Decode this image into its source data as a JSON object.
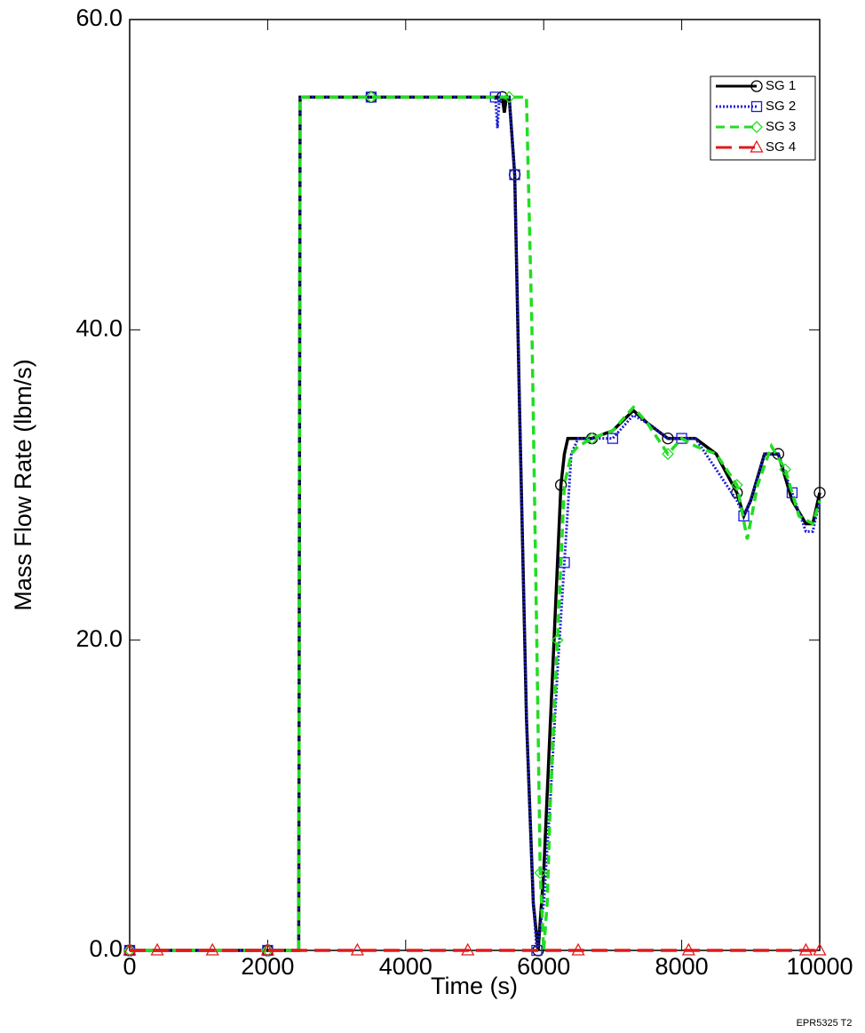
{
  "chart_data": {
    "type": "line",
    "x_label": "Time (s)",
    "y_label": "Mass Flow Rate (lbm/s)",
    "annotation": "EPR5325 T2",
    "xlim": [
      0,
      10000
    ],
    "ylim": [
      0,
      60
    ],
    "xticks": [
      0,
      2000,
      4000,
      6000,
      8000,
      10000
    ],
    "yticks": [
      {
        "value": 0,
        "label": "0.0"
      },
      {
        "value": 20,
        "label": "20.0"
      },
      {
        "value": 40,
        "label": "40.0"
      },
      {
        "value": 60,
        "label": "60.0"
      }
    ],
    "legend": "upper right",
    "grid": false,
    "series": [
      {
        "name": "SG 1",
        "color": "#000000",
        "style": "solid",
        "marker": "circle",
        "x": [
          0,
          500,
          1000,
          1500,
          2000,
          2450,
          2470,
          3000,
          3500,
          4000,
          4500,
          5000,
          5400,
          5430,
          5460,
          5500,
          5580,
          5650,
          5750,
          5850,
          5920,
          6000,
          6100,
          6200,
          6250,
          6300,
          6350,
          6500,
          6700,
          7000,
          7300,
          7500,
          7800,
          8000,
          8200,
          8500,
          8800,
          8900,
          9000,
          9200,
          9400,
          9600,
          9800,
          9900,
          10000
        ],
        "values": [
          0,
          0,
          0,
          0,
          0,
          0,
          55,
          55,
          55,
          55,
          55,
          55,
          55,
          54,
          55,
          55,
          50,
          35,
          15,
          3,
          0,
          5,
          15,
          25,
          30,
          32,
          33,
          33,
          33,
          33.5,
          34.8,
          34,
          33,
          33,
          33,
          32,
          29.5,
          28,
          29,
          32,
          32,
          29,
          27.5,
          27.5,
          29.5
        ]
      },
      {
        "name": "SG 2",
        "color": "#1a1ad8",
        "style": "dotted",
        "marker": "square",
        "x": [
          0,
          500,
          1000,
          1500,
          2000,
          2450,
          2470,
          3000,
          3500,
          4000,
          4500,
          5000,
          5300,
          5330,
          5360,
          5500,
          5580,
          5650,
          5750,
          5850,
          5900,
          6000,
          6100,
          6200,
          6300,
          6400,
          6500,
          6700,
          7000,
          7300,
          7500,
          7800,
          8000,
          8200,
          8500,
          8800,
          8900,
          9000,
          9200,
          9400,
          9600,
          9800,
          9900,
          10000
        ],
        "values": [
          0,
          0,
          0,
          0,
          0,
          0,
          55,
          55,
          55,
          55,
          55,
          55,
          55,
          53,
          55,
          55,
          50,
          35,
          15,
          3,
          0,
          3,
          10,
          18,
          25,
          32,
          33,
          33,
          33,
          34.5,
          34,
          33,
          33,
          33,
          31,
          29,
          28,
          29,
          32,
          32,
          29.5,
          27,
          27,
          29
        ]
      },
      {
        "name": "SG 3",
        "color": "#22dd22",
        "style": "dashed",
        "marker": "diamond",
        "x": [
          0,
          500,
          1000,
          1500,
          2000,
          2450,
          2470,
          3000,
          3500,
          4000,
          4500,
          5000,
          5500,
          5750,
          5830,
          5900,
          5950,
          6000,
          6050,
          6100,
          6200,
          6300,
          6400,
          6500,
          6700,
          7000,
          7300,
          7500,
          7800,
          8000,
          8200,
          8500,
          8800,
          8950,
          9100,
          9300,
          9500,
          9700,
          9900,
          10000
        ],
        "values": [
          0,
          0,
          0,
          0,
          0,
          0,
          55,
          55,
          55,
          55,
          55,
          55,
          55,
          55,
          40,
          20,
          5,
          0,
          3,
          10,
          20,
          30,
          32,
          32.5,
          33,
          33.5,
          35,
          34,
          32,
          33,
          32.5,
          32,
          30,
          26.5,
          30,
          32.5,
          31,
          28,
          27.5,
          29
        ]
      },
      {
        "name": "SG 4",
        "color": "#e01a1a",
        "style": "longdash",
        "marker": "triangle",
        "x": [
          0,
          400,
          1200,
          2000,
          3300,
          4900,
          6500,
          8100,
          9800,
          10000
        ],
        "values": [
          0,
          0,
          0,
          0,
          0,
          0,
          0,
          0,
          0,
          0
        ]
      }
    ]
  }
}
